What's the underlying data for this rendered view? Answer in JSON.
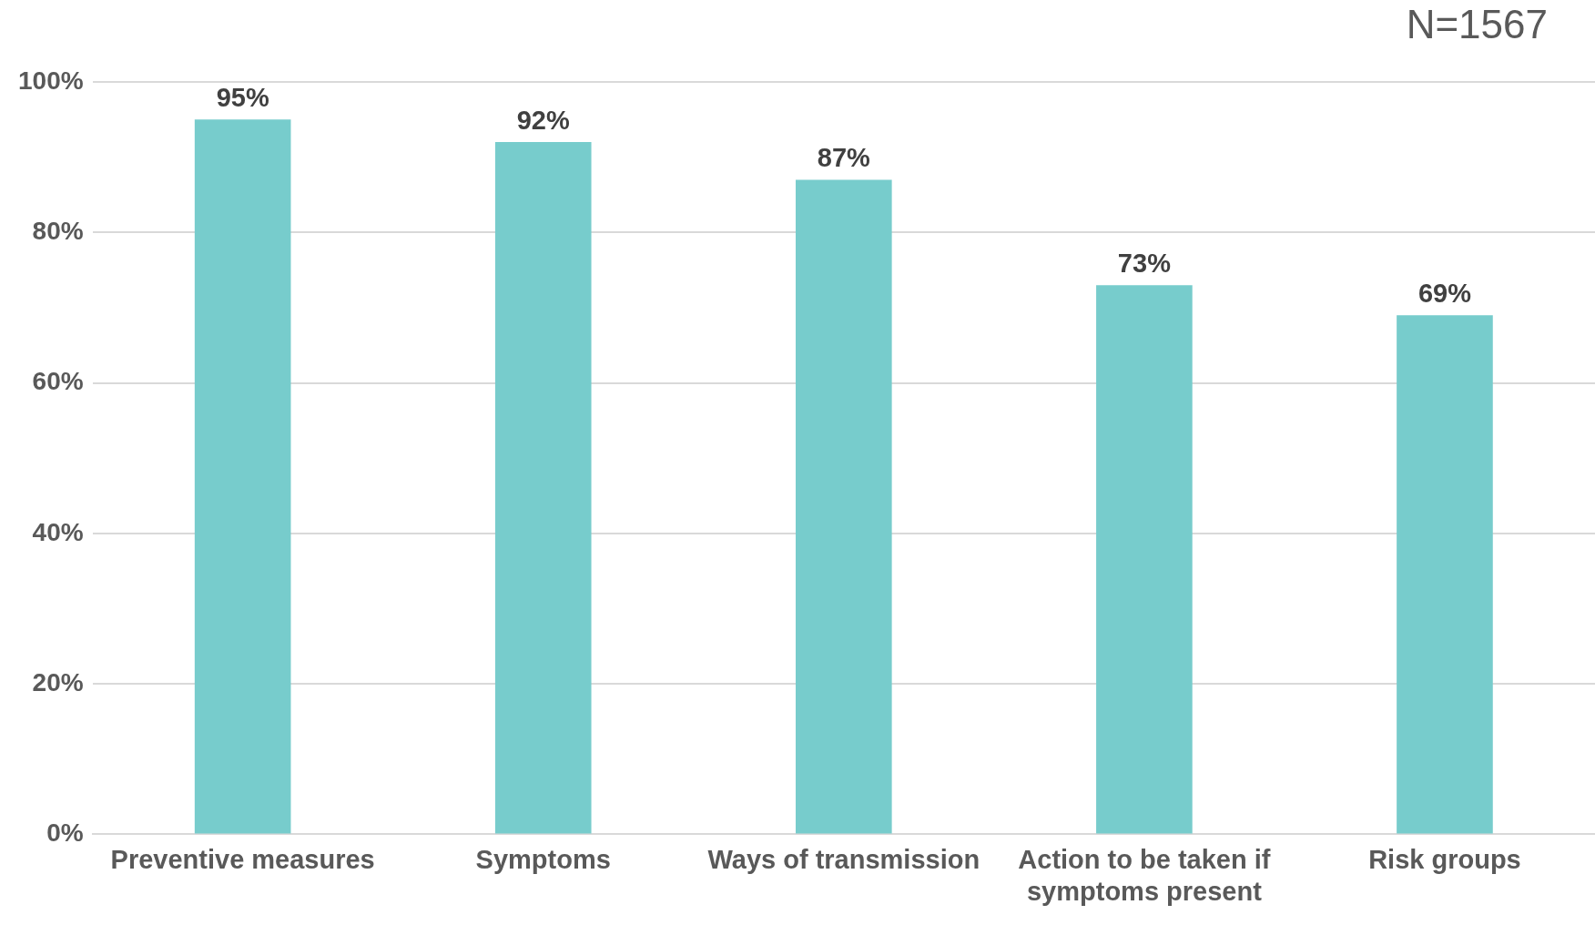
{
  "chart_data": {
    "type": "bar",
    "categories": [
      "Preventive measures",
      "Symptoms",
      "Ways of transmission",
      "Action to be taken if symptoms present",
      "Risk groups"
    ],
    "values": [
      95,
      92,
      87,
      73,
      69
    ],
    "color": "#77cccc",
    "value_labels": [
      "95%",
      "92%",
      "87%",
      "73%",
      "69%"
    ],
    "ylim": [
      0,
      100
    ],
    "yticks": [
      {
        "value": 0,
        "label": "0%"
      },
      {
        "value": 20,
        "label": "20%"
      },
      {
        "value": 40,
        "label": "40%"
      },
      {
        "value": 60,
        "label": "60%"
      },
      {
        "value": 80,
        "label": "80%"
      },
      {
        "value": 100,
        "label": "100%"
      }
    ],
    "grid": "y",
    "legend": false,
    "annotations": [
      "N=1567"
    ]
  }
}
